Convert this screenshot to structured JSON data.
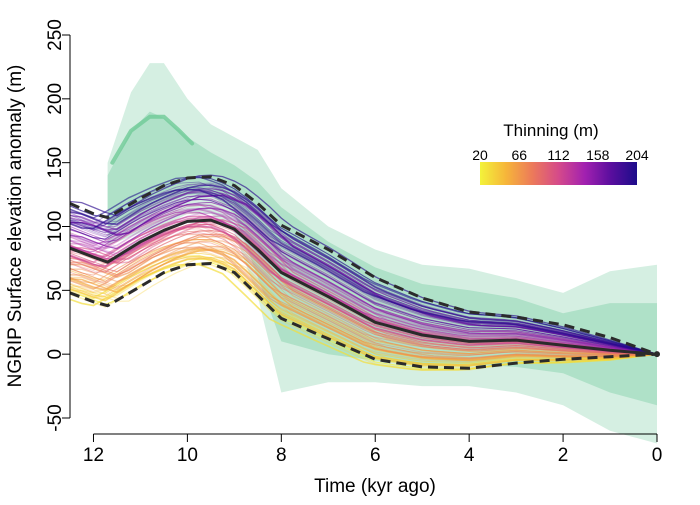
{
  "chart_data": {
    "type": "line",
    "title": "",
    "xlabel": "Time (kyr ago)",
    "ylabel": "NGRIP Surface elevation anomaly (m)",
    "x_reversed": true,
    "xlim": [
      12.5,
      0
    ],
    "ylim": [
      -50,
      250
    ],
    "x_ticks": [
      12,
      10,
      8,
      6,
      4,
      2,
      0
    ],
    "y_ticks": [
      -50,
      0,
      50,
      100,
      150,
      200,
      250
    ],
    "grid": false,
    "legend": {
      "title": "Thinning (m)",
      "placement": "top-right",
      "colorbar_ticks": [
        "20",
        "66",
        "112",
        "158",
        "204"
      ],
      "colormap": [
        "#f3f33a",
        "#f6b53a",
        "#ec7a5a",
        "#d54a8a",
        "#a221b0",
        "#5a0e9e",
        "#1c0c8a"
      ]
    },
    "colors": {
      "band_fill": "#3fb67a",
      "band_highlight": "#6fcb97",
      "ensemble_line": "#2b2b2b"
    },
    "series": [
      {
        "name": "median",
        "style": "solid",
        "x": [
          12.5,
          12.0,
          11.7,
          11.0,
          10.5,
          10.0,
          9.5,
          9.0,
          8.5,
          8.0,
          7.0,
          6.0,
          5.0,
          4.0,
          3.0,
          2.0,
          1.0,
          0.0
        ],
        "values": [
          83,
          76,
          72,
          88,
          97,
          104,
          105,
          98,
          82,
          64,
          45,
          25,
          15,
          10,
          11,
          7,
          3,
          0
        ]
      },
      {
        "name": "upper bound",
        "style": "dashed",
        "x": [
          12.5,
          12.0,
          11.7,
          11.0,
          10.5,
          10.0,
          9.5,
          9.0,
          8.5,
          8.0,
          7.0,
          6.0,
          5.0,
          4.0,
          3.0,
          2.0,
          1.0,
          0.0
        ],
        "values": [
          118,
          110,
          107,
          122,
          132,
          138,
          139,
          132,
          118,
          101,
          82,
          60,
          44,
          33,
          29,
          23,
          13,
          0
        ]
      },
      {
        "name": "lower bound",
        "style": "dashed",
        "x": [
          12.5,
          12.0,
          11.7,
          11.0,
          10.5,
          10.0,
          9.5,
          9.0,
          8.5,
          8.0,
          7.0,
          6.0,
          5.0,
          4.0,
          3.0,
          2.0,
          1.0,
          0.0
        ],
        "values": [
          48,
          41,
          38,
          53,
          64,
          70,
          71,
          64,
          46,
          28,
          12,
          -4,
          -10,
          -11,
          -7,
          -4,
          -2,
          0
        ]
      }
    ]
  }
}
